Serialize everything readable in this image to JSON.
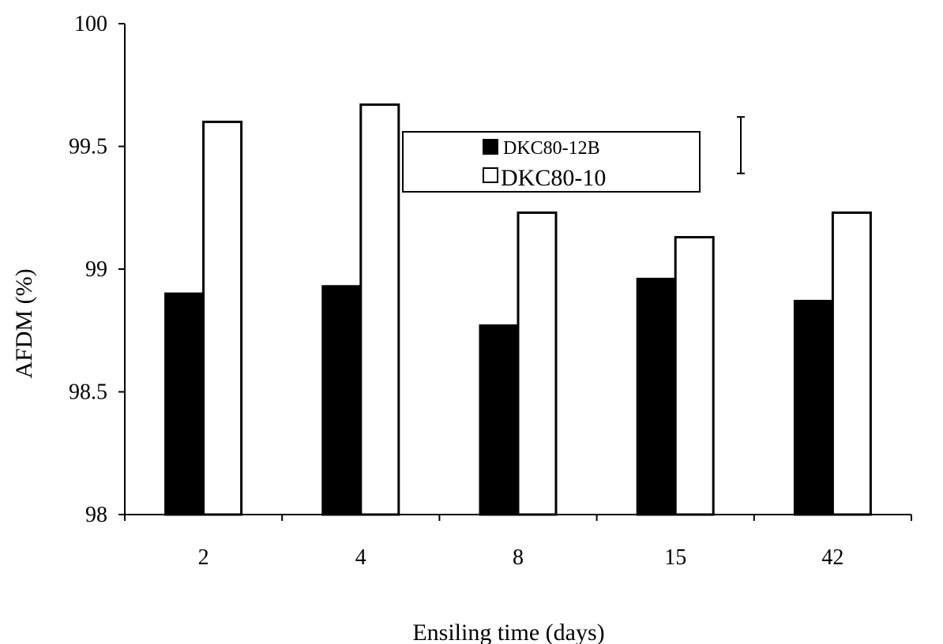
{
  "chart_data": {
    "type": "bar",
    "xlabel": "Ensiling time (days)",
    "ylabel": "AFDM (%)",
    "categories": [
      "2",
      "4",
      "8",
      "15",
      "42"
    ],
    "series": [
      {
        "name": "DKC80-12B",
        "values": [
          98.9,
          98.93,
          98.77,
          98.96,
          98.87
        ],
        "fill": "#000000"
      },
      {
        "name": "DKC80-10",
        "values": [
          99.6,
          99.67,
          99.23,
          99.13,
          99.23
        ],
        "fill": "#ffffff"
      }
    ],
    "ylim": [
      98,
      100
    ],
    "yticks": [
      "98",
      "98.5",
      "99",
      "99.5",
      "100"
    ],
    "grid": false,
    "legend": "top-center",
    "error_bar": {
      "low": 99.39,
      "high": 99.62
    }
  }
}
